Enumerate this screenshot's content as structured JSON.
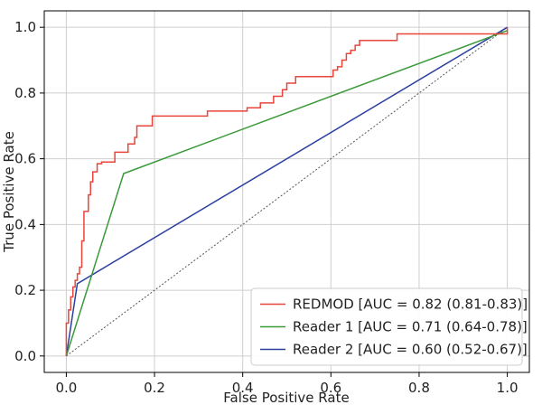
{
  "chart_data": {
    "type": "line",
    "title": "",
    "xlabel": "False Positive Rate",
    "ylabel": "True Positive Rate",
    "xlim": [
      -0.05,
      1.05
    ],
    "ylim": [
      -0.05,
      1.05
    ],
    "x_ticks": [
      "0.0",
      "0.2",
      "0.4",
      "0.6",
      "0.8",
      "1.0"
    ],
    "y_ticks": [
      "0.0",
      "0.2",
      "0.4",
      "0.6",
      "0.8",
      "1.0"
    ],
    "grid": true,
    "legend_position": "lower-right",
    "series": [
      {
        "name": "REDMOD [AUC = 0.82 (0.81-0.83)]",
        "color": "#e8453c",
        "style": "solid",
        "x": [
          0.0,
          0.0,
          0.005,
          0.005,
          0.01,
          0.01,
          0.015,
          0.015,
          0.02,
          0.02,
          0.025,
          0.025,
          0.03,
          0.03,
          0.035,
          0.035,
          0.04,
          0.04,
          0.05,
          0.05,
          0.055,
          0.055,
          0.06,
          0.06,
          0.07,
          0.07,
          0.08,
          0.08,
          0.09,
          0.09,
          0.11,
          0.11,
          0.125,
          0.125,
          0.14,
          0.14,
          0.155,
          0.155,
          0.16,
          0.16,
          0.195,
          0.195,
          0.32,
          0.32,
          0.41,
          0.41,
          0.44,
          0.44,
          0.47,
          0.47,
          0.49,
          0.49,
          0.5,
          0.5,
          0.52,
          0.52,
          0.605,
          0.605,
          0.615,
          0.615,
          0.625,
          0.625,
          0.635,
          0.635,
          0.645,
          0.645,
          0.655,
          0.655,
          0.665,
          0.665,
          0.71,
          0.71,
          0.72,
          0.72,
          0.73,
          0.73,
          0.74,
          0.74,
          0.75,
          0.75,
          0.765,
          0.765,
          1.0,
          1.0
        ],
        "y": [
          0.0,
          0.1,
          0.1,
          0.14,
          0.14,
          0.18,
          0.18,
          0.21,
          0.21,
          0.23,
          0.23,
          0.25,
          0.25,
          0.27,
          0.27,
          0.35,
          0.35,
          0.44,
          0.44,
          0.49,
          0.49,
          0.53,
          0.53,
          0.56,
          0.56,
          0.585,
          0.585,
          0.59,
          0.59,
          0.59,
          0.59,
          0.62,
          0.62,
          0.62,
          0.62,
          0.645,
          0.645,
          0.665,
          0.665,
          0.7,
          0.7,
          0.73,
          0.73,
          0.745,
          0.745,
          0.755,
          0.755,
          0.77,
          0.77,
          0.79,
          0.79,
          0.81,
          0.81,
          0.83,
          0.83,
          0.85,
          0.85,
          0.87,
          0.87,
          0.88,
          0.88,
          0.9,
          0.9,
          0.92,
          0.92,
          0.93,
          0.93,
          0.945,
          0.945,
          0.96,
          0.96,
          0.96,
          0.96,
          0.96,
          0.96,
          0.96,
          0.96,
          0.96,
          0.96,
          0.98,
          0.98,
          0.98,
          0.98,
          1.0
        ]
      },
      {
        "name": "Reader 1 [AUC = 0.71 (0.64-0.78)]",
        "color": "#3a9a3a",
        "style": "solid",
        "x": [
          0.0,
          0.13,
          1.0
        ],
        "y": [
          0.0,
          0.555,
          0.99
        ]
      },
      {
        "name": "Reader 2 [AUC = 0.60 (0.52-0.67)]",
        "color": "#2b3fa0",
        "style": "solid",
        "x": [
          0.0,
          0.025,
          1.0
        ],
        "y": [
          0.0,
          0.22,
          1.0
        ]
      },
      {
        "name": "",
        "color": "#555555",
        "style": "dotted",
        "x": [
          0.0,
          1.0
        ],
        "y": [
          0.0,
          1.0
        ]
      }
    ]
  }
}
